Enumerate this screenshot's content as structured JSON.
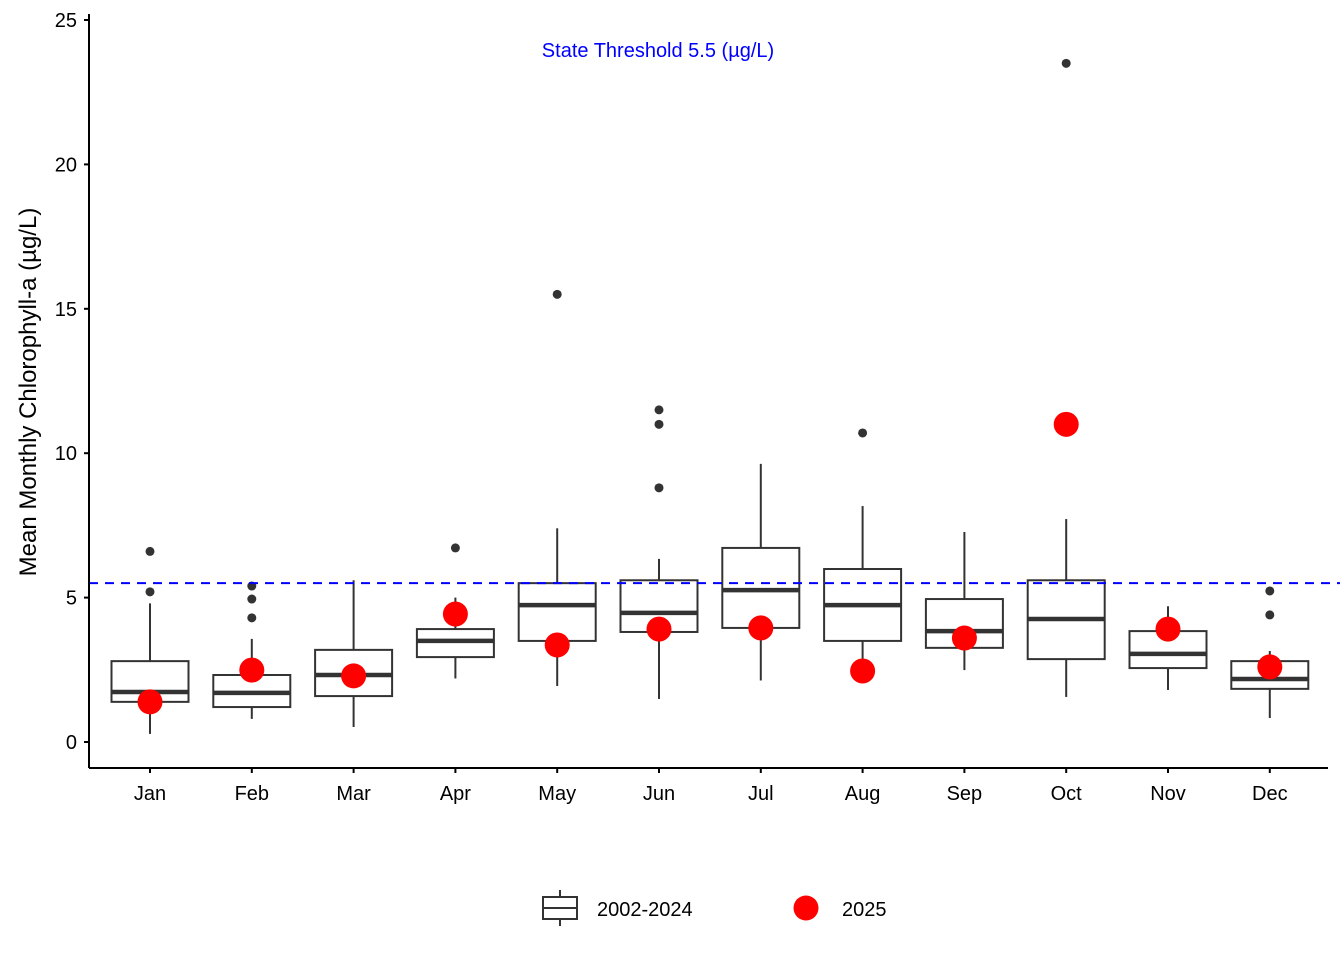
{
  "chart_data": {
    "type": "box",
    "title": "",
    "xlabel": "",
    "ylabel": "Mean Monthly Chlorophyll-a (µg/L)",
    "ylim": [
      -0.9,
      25.2
    ],
    "yticks": [
      0,
      5,
      10,
      15,
      20,
      25
    ],
    "ytick_labels": [
      "0",
      "5",
      "10",
      "15",
      "20",
      "25"
    ],
    "grid": false,
    "categories": [
      "Jan",
      "Feb",
      "Mar",
      "Apr",
      "May",
      "Jun",
      "Jul",
      "Aug",
      "Sep",
      "Oct",
      "Nov",
      "Dec"
    ],
    "threshold": {
      "value": 5.5,
      "label": "State Threshold 5.5 (µg/L)",
      "color": "#0000ff",
      "style": "dashed"
    },
    "series": [
      {
        "name": "2002-2024",
        "type": "boxplot",
        "color": "#333333",
        "boxes": [
          {
            "month": "Jan",
            "whisker_low": 0.28,
            "q1": 1.39,
            "median": 1.73,
            "q3": 2.8,
            "whisker_high": 4.8,
            "outliers": [
              5.2,
              6.6
            ]
          },
          {
            "month": "Feb",
            "whisker_low": 0.8,
            "q1": 1.21,
            "median": 1.7,
            "q3": 2.32,
            "whisker_high": 3.57,
            "outliers": [
              4.3,
              4.95,
              5.4
            ]
          },
          {
            "month": "Mar",
            "whisker_low": 0.52,
            "q1": 1.59,
            "median": 2.32,
            "q3": 3.19,
            "whisker_high": 5.6,
            "outliers": []
          },
          {
            "month": "Apr",
            "whisker_low": 2.2,
            "q1": 2.94,
            "median": 3.5,
            "q3": 3.91,
            "whisker_high": 5.0,
            "outliers": [
              6.72
            ]
          },
          {
            "month": "May",
            "whisker_low": 1.94,
            "q1": 3.5,
            "median": 4.74,
            "q3": 5.5,
            "whisker_high": 7.4,
            "outliers": [
              15.5
            ]
          },
          {
            "month": "Jun",
            "whisker_low": 1.49,
            "q1": 3.81,
            "median": 4.47,
            "q3": 5.6,
            "whisker_high": 6.34,
            "outliers": [
              8.8,
              11.0,
              11.5
            ]
          },
          {
            "month": "Jul",
            "whisker_low": 2.13,
            "q1": 3.95,
            "median": 5.26,
            "q3": 6.72,
            "whisker_high": 9.63,
            "outliers": []
          },
          {
            "month": "Aug",
            "whisker_low": 2.8,
            "q1": 3.5,
            "median": 4.74,
            "q3": 5.99,
            "whisker_high": 8.17,
            "outliers": [
              10.7
            ]
          },
          {
            "month": "Sep",
            "whisker_low": 2.49,
            "q1": 3.26,
            "median": 3.84,
            "q3": 4.95,
            "whisker_high": 7.27,
            "outliers": []
          },
          {
            "month": "Oct",
            "whisker_low": 1.56,
            "q1": 2.87,
            "median": 4.26,
            "q3": 5.6,
            "whisker_high": 7.72,
            "outliers": [
              23.5
            ]
          },
          {
            "month": "Nov",
            "whisker_low": 1.8,
            "q1": 2.56,
            "median": 3.05,
            "q3": 3.84,
            "whisker_high": 4.7,
            "outliers": []
          },
          {
            "month": "Dec",
            "whisker_low": 0.83,
            "q1": 1.84,
            "median": 2.18,
            "q3": 2.8,
            "whisker_high": 3.15,
            "outliers": [
              4.4,
              5.23
            ]
          }
        ]
      },
      {
        "name": "2025",
        "type": "scatter",
        "color": "#ff0000",
        "values": [
          1.39,
          2.49,
          2.29,
          4.43,
          3.36,
          3.91,
          3.95,
          2.46,
          3.6,
          11.0,
          3.91,
          2.6
        ]
      }
    ],
    "legend": {
      "position": "bottom",
      "entries": [
        {
          "label": "2002-2024",
          "symbol": "box"
        },
        {
          "label": "2025",
          "symbol": "circle"
        }
      ]
    }
  }
}
